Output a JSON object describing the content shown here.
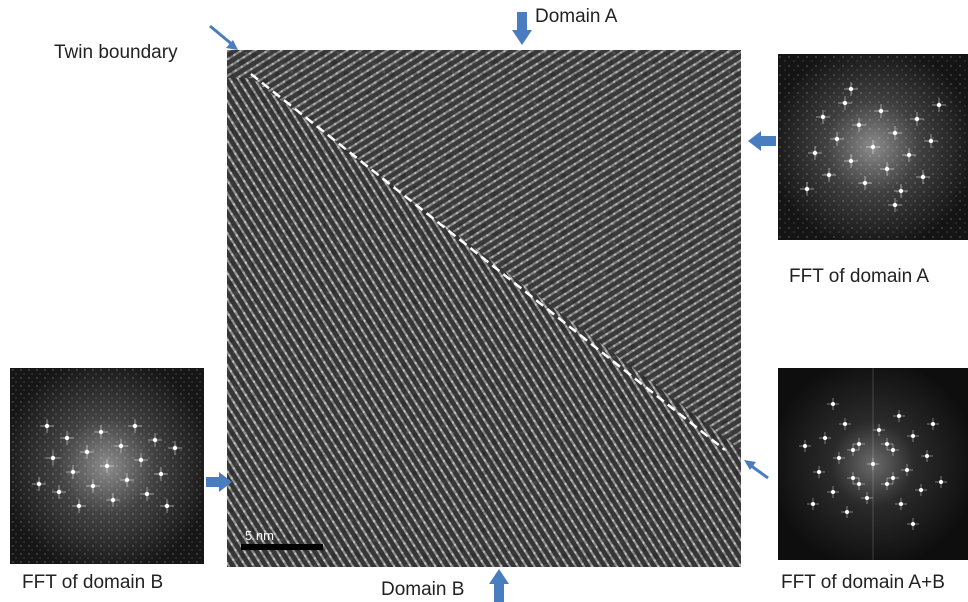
{
  "labels": {
    "twin_boundary": "Twin boundary",
    "domain_a": "Domain A",
    "domain_b": "Domain B",
    "fft_domain_a": "FFT of domain A",
    "fft_domain_b": "FFT of domain B",
    "fft_domain_ab": "FFT of domain A+B"
  },
  "scale_bar": {
    "label": "5  nm"
  },
  "colors": {
    "arrow": "#4a7cc0",
    "boundary_line": "#ffffff",
    "background": "#ffffff"
  },
  "icons": [
    "arrow-down-icon",
    "arrow-up-icon",
    "arrow-left-icon",
    "arrow-right-icon",
    "arrow-diagonal-icon"
  ]
}
